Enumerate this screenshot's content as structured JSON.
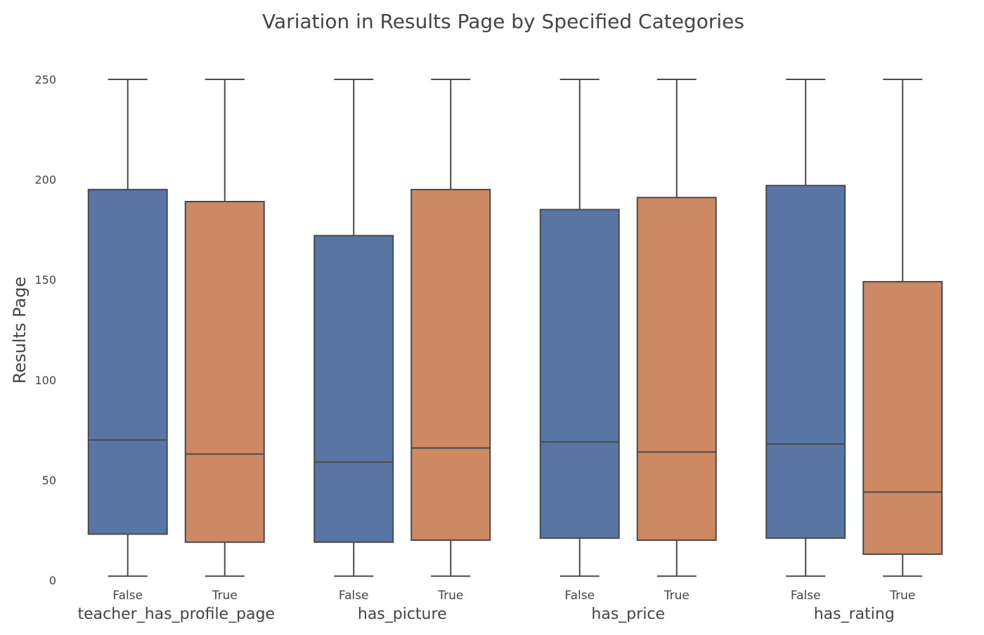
{
  "chart_data": {
    "type": "box",
    "title": "Variation in Results Page by Specified Categories",
    "ylabel": "Results Page",
    "ylim": [
      0,
      250
    ],
    "yticks": [
      0,
      50,
      100,
      150,
      200,
      250
    ],
    "grid": false,
    "colors": {
      "False": "#5875a4",
      "True": "#cc8963",
      "stroke": "#4a4a4a",
      "text": "#444444"
    },
    "groups": [
      {
        "name": "teacher_has_profile_page",
        "boxes": [
          {
            "label": "False",
            "q1": 23,
            "median": 70,
            "q3": 195,
            "whisker_low": 2,
            "whisker_high": 250
          },
          {
            "label": "True",
            "q1": 19,
            "median": 63,
            "q3": 189,
            "whisker_low": 2,
            "whisker_high": 250
          }
        ]
      },
      {
        "name": "has_picture",
        "boxes": [
          {
            "label": "False",
            "q1": 19,
            "median": 59,
            "q3": 172,
            "whisker_low": 2,
            "whisker_high": 250
          },
          {
            "label": "True",
            "q1": 20,
            "median": 66,
            "q3": 195,
            "whisker_low": 2,
            "whisker_high": 250
          }
        ]
      },
      {
        "name": "has_price",
        "boxes": [
          {
            "label": "False",
            "q1": 21,
            "median": 69,
            "q3": 185,
            "whisker_low": 2,
            "whisker_high": 250
          },
          {
            "label": "True",
            "q1": 20,
            "median": 64,
            "q3": 191,
            "whisker_low": 2,
            "whisker_high": 250
          }
        ]
      },
      {
        "name": "has_rating",
        "boxes": [
          {
            "label": "False",
            "q1": 21,
            "median": 68,
            "q3": 197,
            "whisker_low": 2,
            "whisker_high": 250
          },
          {
            "label": "True",
            "q1": 13,
            "median": 44,
            "q3": 149,
            "whisker_low": 2,
            "whisker_high": 250
          }
        ]
      }
    ]
  }
}
